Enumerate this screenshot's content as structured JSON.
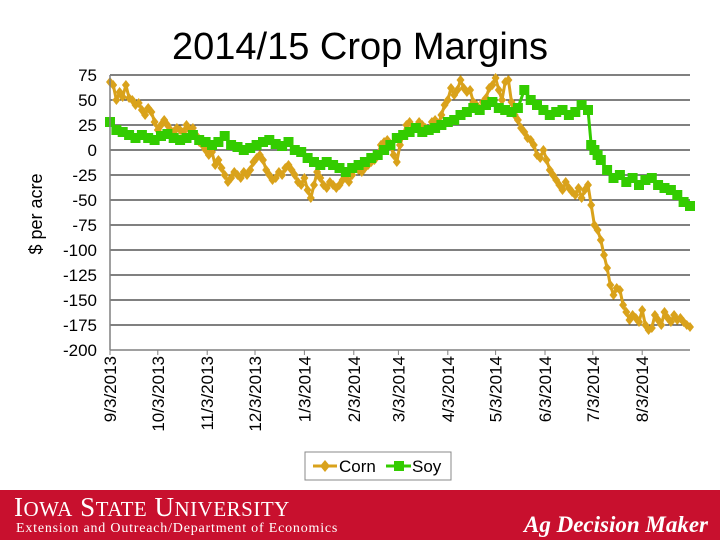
{
  "chart_data": {
    "type": "line",
    "title": "2014/15 Crop Margins",
    "ylabel": "$ per acre",
    "xlabel": "",
    "ylim": [
      -200,
      75
    ],
    "yticks": [
      75,
      50,
      25,
      0,
      -25,
      -50,
      -75,
      -100,
      -125,
      -150,
      -175,
      -200
    ],
    "grid": true,
    "xlim_days": [
      0,
      364
    ],
    "xticks": [
      {
        "label": "9/3/2013",
        "day": 0
      },
      {
        "label": "10/3/2013",
        "day": 30
      },
      {
        "label": "11/3/2013",
        "day": 61
      },
      {
        "label": "12/3/2013",
        "day": 91
      },
      {
        "label": "1/3/2014",
        "day": 122
      },
      {
        "label": "2/3/2014",
        "day": 153
      },
      {
        "label": "3/3/2014",
        "day": 181
      },
      {
        "label": "4/3/2014",
        "day": 212
      },
      {
        "label": "5/3/2014",
        "day": 242
      },
      {
        "label": "6/3/2014",
        "day": 273
      },
      {
        "label": "7/3/2014",
        "day": 303
      },
      {
        "label": "8/3/2014",
        "day": 334
      }
    ],
    "legend_position": "bottom",
    "series": [
      {
        "name": "Corn",
        "color": "#d9a21b",
        "marker": "diamond",
        "points": [
          [
            0,
            68
          ],
          [
            2,
            65
          ],
          [
            4,
            50
          ],
          [
            6,
            58
          ],
          [
            8,
            53
          ],
          [
            10,
            65
          ],
          [
            12,
            52
          ],
          [
            14,
            50
          ],
          [
            16,
            45
          ],
          [
            18,
            47
          ],
          [
            20,
            40
          ],
          [
            22,
            35
          ],
          [
            24,
            42
          ],
          [
            26,
            38
          ],
          [
            28,
            28
          ],
          [
            30,
            20
          ],
          [
            32,
            25
          ],
          [
            34,
            30
          ],
          [
            36,
            25
          ],
          [
            38,
            20
          ],
          [
            40,
            18
          ],
          [
            42,
            22
          ],
          [
            44,
            20
          ],
          [
            46,
            18
          ],
          [
            48,
            25
          ],
          [
            50,
            20
          ],
          [
            52,
            22
          ],
          [
            54,
            15
          ],
          [
            56,
            8
          ],
          [
            58,
            5
          ],
          [
            60,
            0
          ],
          [
            62,
            -5
          ],
          [
            64,
            -2
          ],
          [
            66,
            -15
          ],
          [
            68,
            -10
          ],
          [
            70,
            -18
          ],
          [
            72,
            -25
          ],
          [
            74,
            -32
          ],
          [
            76,
            -28
          ],
          [
            78,
            -22
          ],
          [
            80,
            -25
          ],
          [
            82,
            -28
          ],
          [
            84,
            -22
          ],
          [
            86,
            -25
          ],
          [
            88,
            -20
          ],
          [
            90,
            -12
          ],
          [
            92,
            -8
          ],
          [
            94,
            -5
          ],
          [
            96,
            -10
          ],
          [
            98,
            -20
          ],
          [
            100,
            -25
          ],
          [
            102,
            -30
          ],
          [
            104,
            -28
          ],
          [
            106,
            -22
          ],
          [
            108,
            -25
          ],
          [
            110,
            -18
          ],
          [
            112,
            -15
          ],
          [
            114,
            -20
          ],
          [
            116,
            -25
          ],
          [
            118,
            -32
          ],
          [
            120,
            -35
          ],
          [
            122,
            -28
          ],
          [
            124,
            -40
          ],
          [
            126,
            -48
          ],
          [
            128,
            -35
          ],
          [
            130,
            -22
          ],
          [
            132,
            -28
          ],
          [
            134,
            -35
          ],
          [
            136,
            -38
          ],
          [
            138,
            -32
          ],
          [
            140,
            -35
          ],
          [
            142,
            -38
          ],
          [
            144,
            -35
          ],
          [
            146,
            -30
          ],
          [
            148,
            -28
          ],
          [
            150,
            -32
          ],
          [
            152,
            -25
          ],
          [
            154,
            -18
          ],
          [
            156,
            -20
          ],
          [
            158,
            -22
          ],
          [
            160,
            -18
          ],
          [
            162,
            -15
          ],
          [
            164,
            -12
          ],
          [
            166,
            -10
          ],
          [
            168,
            -5
          ],
          [
            170,
            5
          ],
          [
            172,
            8
          ],
          [
            174,
            10
          ],
          [
            176,
            5
          ],
          [
            178,
            -5
          ],
          [
            180,
            -12
          ],
          [
            182,
            5
          ],
          [
            184,
            15
          ],
          [
            186,
            25
          ],
          [
            188,
            28
          ],
          [
            190,
            20
          ],
          [
            192,
            22
          ],
          [
            194,
            28
          ],
          [
            196,
            25
          ],
          [
            198,
            22
          ],
          [
            200,
            20
          ],
          [
            202,
            28
          ],
          [
            204,
            30
          ],
          [
            206,
            25
          ],
          [
            208,
            35
          ],
          [
            210,
            45
          ],
          [
            212,
            50
          ],
          [
            214,
            62
          ],
          [
            216,
            55
          ],
          [
            218,
            60
          ],
          [
            220,
            70
          ],
          [
            222,
            62
          ],
          [
            224,
            58
          ],
          [
            226,
            60
          ],
          [
            228,
            48
          ],
          [
            230,
            45
          ],
          [
            232,
            40
          ],
          [
            234,
            48
          ],
          [
            236,
            52
          ],
          [
            238,
            62
          ],
          [
            240,
            65
          ],
          [
            242,
            72
          ],
          [
            244,
            60
          ],
          [
            246,
            50
          ],
          [
            248,
            68
          ],
          [
            250,
            70
          ],
          [
            252,
            48
          ],
          [
            254,
            35
          ],
          [
            256,
            30
          ],
          [
            258,
            22
          ],
          [
            260,
            18
          ],
          [
            262,
            12
          ],
          [
            264,
            10
          ],
          [
            266,
            5
          ],
          [
            268,
            -5
          ],
          [
            270,
            -8
          ],
          [
            272,
            0
          ],
          [
            274,
            -10
          ],
          [
            276,
            -20
          ],
          [
            278,
            -25
          ],
          [
            280,
            -30
          ],
          [
            282,
            -35
          ],
          [
            284,
            -40
          ],
          [
            286,
            -32
          ],
          [
            288,
            -38
          ],
          [
            290,
            -42
          ],
          [
            292,
            -45
          ],
          [
            294,
            -38
          ],
          [
            296,
            -48
          ],
          [
            298,
            -40
          ],
          [
            300,
            -35
          ],
          [
            302,
            -55
          ],
          [
            304,
            -75
          ],
          [
            306,
            -80
          ],
          [
            308,
            -90
          ],
          [
            310,
            -105
          ],
          [
            312,
            -118
          ],
          [
            314,
            -135
          ],
          [
            316,
            -145
          ],
          [
            318,
            -138
          ],
          [
            320,
            -140
          ],
          [
            322,
            -155
          ],
          [
            324,
            -162
          ],
          [
            326,
            -170
          ],
          [
            328,
            -165
          ],
          [
            330,
            -168
          ],
          [
            332,
            -172
          ],
          [
            334,
            -160
          ],
          [
            336,
            -175
          ],
          [
            338,
            -180
          ],
          [
            340,
            -178
          ],
          [
            342,
            -165
          ],
          [
            344,
            -170
          ],
          [
            346,
            -175
          ],
          [
            348,
            -162
          ],
          [
            350,
            -168
          ],
          [
            352,
            -172
          ],
          [
            354,
            -165
          ],
          [
            356,
            -170
          ],
          [
            358,
            -168
          ],
          [
            360,
            -172
          ],
          [
            362,
            -175
          ],
          [
            364,
            -177
          ]
        ]
      },
      {
        "name": "Soy",
        "color": "#33cc00",
        "marker": "square",
        "points": [
          [
            0,
            28
          ],
          [
            4,
            20
          ],
          [
            8,
            18
          ],
          [
            12,
            15
          ],
          [
            16,
            12
          ],
          [
            20,
            15
          ],
          [
            24,
            12
          ],
          [
            28,
            10
          ],
          [
            32,
            14
          ],
          [
            36,
            16
          ],
          [
            40,
            12
          ],
          [
            44,
            10
          ],
          [
            48,
            12
          ],
          [
            52,
            15
          ],
          [
            56,
            10
          ],
          [
            60,
            8
          ],
          [
            64,
            5
          ],
          [
            68,
            8
          ],
          [
            72,
            14
          ],
          [
            76,
            5
          ],
          [
            80,
            3
          ],
          [
            84,
            0
          ],
          [
            88,
            2
          ],
          [
            92,
            5
          ],
          [
            96,
            8
          ],
          [
            100,
            10
          ],
          [
            104,
            6
          ],
          [
            108,
            4
          ],
          [
            112,
            8
          ],
          [
            116,
            0
          ],
          [
            120,
            -2
          ],
          [
            124,
            -8
          ],
          [
            128,
            -12
          ],
          [
            132,
            -15
          ],
          [
            136,
            -12
          ],
          [
            140,
            -15
          ],
          [
            144,
            -18
          ],
          [
            148,
            -22
          ],
          [
            152,
            -18
          ],
          [
            156,
            -15
          ],
          [
            160,
            -12
          ],
          [
            164,
            -8
          ],
          [
            168,
            -5
          ],
          [
            172,
            0
          ],
          [
            176,
            5
          ],
          [
            180,
            12
          ],
          [
            184,
            15
          ],
          [
            188,
            18
          ],
          [
            192,
            22
          ],
          [
            196,
            18
          ],
          [
            200,
            20
          ],
          [
            204,
            22
          ],
          [
            208,
            25
          ],
          [
            212,
            28
          ],
          [
            216,
            30
          ],
          [
            220,
            35
          ],
          [
            224,
            38
          ],
          [
            228,
            42
          ],
          [
            232,
            40
          ],
          [
            236,
            45
          ],
          [
            240,
            48
          ],
          [
            244,
            42
          ],
          [
            248,
            40
          ],
          [
            252,
            38
          ],
          [
            256,
            42
          ],
          [
            260,
            60
          ],
          [
            264,
            50
          ],
          [
            268,
            45
          ],
          [
            272,
            40
          ],
          [
            276,
            35
          ],
          [
            280,
            38
          ],
          [
            284,
            40
          ],
          [
            288,
            35
          ],
          [
            292,
            38
          ],
          [
            296,
            45
          ],
          [
            300,
            40
          ],
          [
            302,
            5
          ],
          [
            304,
            0
          ],
          [
            306,
            -5
          ],
          [
            308,
            -10
          ],
          [
            312,
            -20
          ],
          [
            316,
            -28
          ],
          [
            320,
            -25
          ],
          [
            324,
            -32
          ],
          [
            328,
            -28
          ],
          [
            332,
            -35
          ],
          [
            336,
            -30
          ],
          [
            340,
            -28
          ],
          [
            344,
            -35
          ],
          [
            348,
            -38
          ],
          [
            352,
            -40
          ],
          [
            356,
            -45
          ],
          [
            360,
            -52
          ],
          [
            364,
            -56
          ]
        ]
      }
    ]
  },
  "footer": {
    "university_cap1": "I",
    "university_rest1": "OWA",
    "university_cap2": "S",
    "university_rest2": "TATE",
    "university_cap3": "U",
    "university_rest3": "NIVERSITY",
    "subtitle": "Extension and Outreach/Department of Economics",
    "brand": "Ag Decision Maker",
    "bar_color": "#c8102e"
  }
}
